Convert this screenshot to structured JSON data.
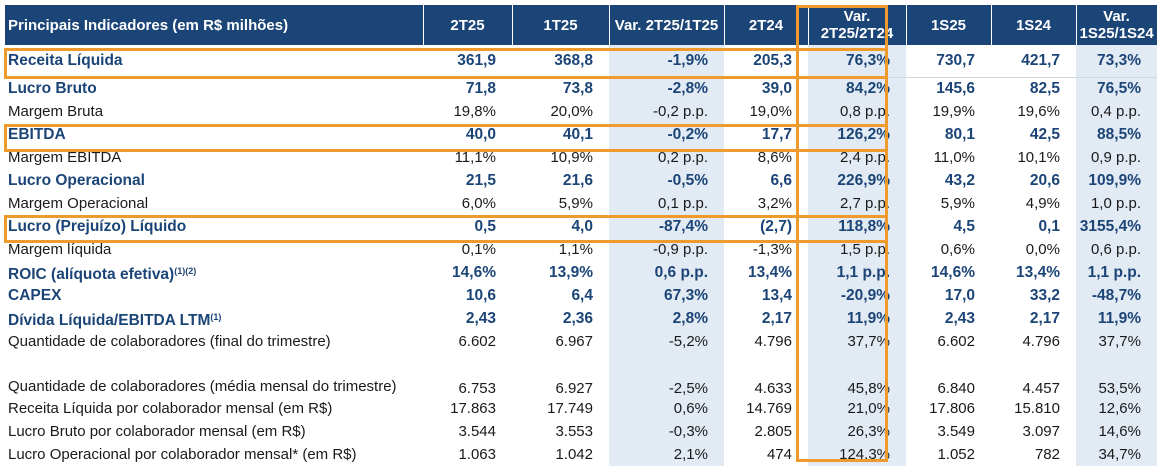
{
  "table": {
    "headers": {
      "label": "Principais Indicadores (em R$ milhões)",
      "cols": [
        "2T25",
        "1T25",
        "Var. 2T25/1T25",
        "2T24",
        "Var. 2T25/2T24",
        "1S25",
        "1S24",
        "Var. 1S25/1S24"
      ]
    },
    "rows": [
      {
        "label": "Receita Líquida",
        "sup": "",
        "values": [
          "361,9",
          "368,8",
          "-1,9%",
          "205,3",
          "76,3%",
          "730,7",
          "421,7",
          "73,3%"
        ]
      },
      {
        "label": "Lucro Bruto",
        "sup": "",
        "values": [
          "71,8",
          "73,8",
          "-2,8%",
          "39,0",
          "84,2%",
          "145,6",
          "82,5",
          "76,5%"
        ]
      },
      {
        "label": "Margem Bruta",
        "sup": "",
        "values": [
          "19,8%",
          "20,0%",
          "-0,2 p.p.",
          "19,0%",
          "0,8 p.p.",
          "19,9%",
          "19,6%",
          "0,4 p.p."
        ]
      },
      {
        "label": "EBITDA",
        "sup": "",
        "values": [
          "40,0",
          "40,1",
          "-0,2%",
          "17,7",
          "126,2%",
          "80,1",
          "42,5",
          "88,5%"
        ]
      },
      {
        "label": "Margem EBITDA",
        "sup": "",
        "values": [
          "11,1%",
          "10,9%",
          "0,2 p.p.",
          "8,6%",
          "2,4 p.p.",
          "11,0%",
          "10,1%",
          "0,9 p.p."
        ]
      },
      {
        "label": "Lucro Operacional",
        "sup": "",
        "values": [
          "21,5",
          "21,6",
          "-0,5%",
          "6,6",
          "226,9%",
          "43,2",
          "20,6",
          "109,9%"
        ]
      },
      {
        "label": "Margem Operacional",
        "sup": "",
        "values": [
          "6,0%",
          "5,9%",
          "0,1 p.p.",
          "3,2%",
          "2,7 p.p.",
          "5,9%",
          "4,9%",
          "1,0 p.p."
        ]
      },
      {
        "label": "Lucro (Prejuízo) Líquido",
        "sup": "",
        "values": [
          "0,5",
          "4,0",
          "-87,4%",
          "(2,7)",
          "118,8%",
          "4,5",
          "0,1",
          "3155,4%"
        ]
      },
      {
        "label": "Margem líquida",
        "sup": "",
        "values": [
          "0,1%",
          "1,1%",
          "-0,9 p.p.",
          "-1,3%",
          "1,5 p.p.",
          "0,6%",
          "0,0%",
          "0,6 p.p."
        ]
      },
      {
        "label": "ROIC (alíquota efetiva)",
        "sup": "(1)(2)",
        "values": [
          "14,6%",
          "13,9%",
          "0,6 p.p.",
          "13,4%",
          "1,1 p.p.",
          "14,6%",
          "13,4%",
          "1,1 p.p."
        ]
      },
      {
        "label": "CAPEX",
        "sup": "",
        "values": [
          "10,6",
          "6,4",
          "67,3%",
          "13,4",
          "-20,9%",
          "17,0",
          "33,2",
          "-48,7%"
        ]
      },
      {
        "label": "Dívida Líquida/EBITDA LTM",
        "sup": "(1)",
        "values": [
          "2,43",
          "2,36",
          "2,8%",
          "2,17",
          "11,9%",
          "2,43",
          "2,17",
          "11,9%"
        ]
      },
      {
        "label": "Quantidade de colaboradores (final do trimestre)",
        "sup": "",
        "values": [
          "6.602",
          "6.967",
          "-5,2%",
          "4.796",
          "37,7%",
          "6.602",
          "4.796",
          "37,7%"
        ]
      },
      {
        "label": "Quantidade de colaboradores (média mensal do trimestre)",
        "sup": "",
        "values": [
          "6.753",
          "6.927",
          "-2,5%",
          "4.633",
          "45,8%",
          "6.840",
          "4.457",
          "53,5%"
        ]
      },
      {
        "label": "Receita Líquida por colaborador mensal (em R$)",
        "sup": "",
        "values": [
          "17.863",
          "17.749",
          "0,6%",
          "14.769",
          "21,0%",
          "17.806",
          "15.810",
          "12,6%"
        ]
      },
      {
        "label": "Lucro Bruto por colaborador mensal (em R$)",
        "sup": "",
        "values": [
          "3.544",
          "3.553",
          "-0,3%",
          "2.805",
          "26,3%",
          "3.549",
          "3.097",
          "14,6%"
        ]
      },
      {
        "label": "Lucro Operacional por colaborador mensal* (em R$)",
        "sup": "",
        "values": [
          "1.063",
          "1.042",
          "2,1%",
          "474",
          "124,3%",
          "1.052",
          "782",
          "34,7%"
        ]
      }
    ]
  },
  "colors": {
    "header_bg": "#1c4577",
    "bold_text": "#1c4577",
    "var_column_bg": "#e2eaf4",
    "highlight": "#ee9a2d"
  }
}
